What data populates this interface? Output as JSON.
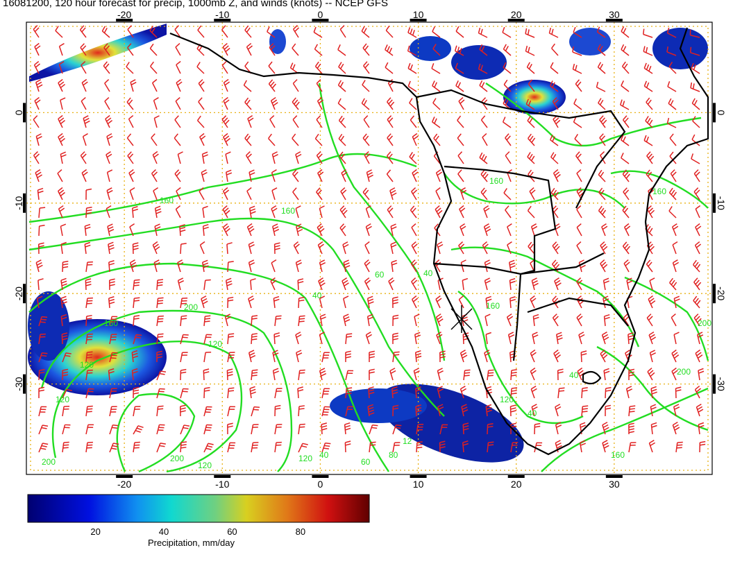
{
  "title": "16081200, 120 hour forecast for precip, 1000mb Z, and winds (knots) -- NCEP GFS",
  "map": {
    "lon_range": [
      -30,
      40
    ],
    "lat_range": [
      -40,
      10
    ],
    "lon_ticks": [
      "-20",
      "-10",
      "0",
      "10",
      "20",
      "30"
    ],
    "lat_ticks": [
      "0",
      "-10",
      "-20",
      "-30"
    ],
    "contour_labels": [
      "160",
      "160",
      "160",
      "160",
      "160",
      "200",
      "120",
      "120",
      "60",
      "40",
      "120",
      "200",
      "200",
      "200",
      "120",
      "60",
      "40",
      "120",
      "160",
      "40",
      "160",
      "200",
      "40",
      "120",
      "80",
      "12",
      "40"
    ],
    "colors": {
      "contour": "#22dd22",
      "barb": "#e02020",
      "grid": "#e8b010",
      "coast": "#000000"
    },
    "center_marker": "x-mark-icon"
  },
  "colorbar": {
    "title": "Precipitation, mm/day",
    "tick_labels": [
      "20",
      "40",
      "60",
      "80"
    ],
    "tick_values": [
      20,
      40,
      60,
      80
    ],
    "range": [
      0,
      100
    ]
  }
}
